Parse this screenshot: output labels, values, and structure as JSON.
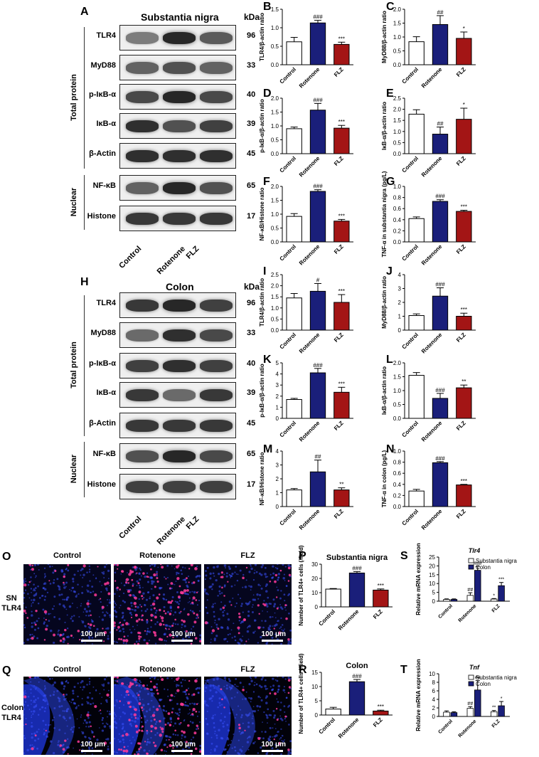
{
  "panel_letters": {
    "A": "A",
    "B": "B",
    "C": "C",
    "D": "D",
    "E": "E",
    "F": "F",
    "G": "G",
    "H": "H",
    "I": "I",
    "J": "J",
    "K": "K",
    "L": "L",
    "M": "M",
    "N": "N",
    "O": "O",
    "P": "P",
    "Q": "Q",
    "R": "R",
    "S": "S",
    "T": "T"
  },
  "blot_A": {
    "title": "Substantia nigra",
    "kda_header": "kDa",
    "group_total": "Total protein",
    "group_nuclear": "Nuclear",
    "rows": [
      {
        "label": "TLR4",
        "kda": "96",
        "intensity": [
          0.45,
          0.95,
          0.65
        ]
      },
      {
        "label": "MyD88",
        "kda": "33",
        "intensity": [
          0.6,
          0.7,
          0.6
        ]
      },
      {
        "label": "p-IκB-α",
        "kda": "40",
        "intensity": [
          0.75,
          0.95,
          0.75
        ]
      },
      {
        "label": "IκB-α",
        "kda": "39",
        "intensity": [
          0.9,
          0.7,
          0.8
        ]
      },
      {
        "label": "β-Actin",
        "kda": "45",
        "intensity": [
          0.9,
          0.9,
          0.9
        ]
      },
      {
        "label": "NF-κB",
        "kda": "65",
        "intensity": [
          0.6,
          0.95,
          0.7
        ]
      },
      {
        "label": "Histone",
        "kda": "17",
        "intensity": [
          0.85,
          0.85,
          0.85
        ]
      }
    ],
    "lanes": [
      "Control",
      "Rotenone",
      "FLZ"
    ]
  },
  "blot_H": {
    "title": "Colon",
    "kda_header": "kDa",
    "group_total": "Total protein",
    "group_nuclear": "Nuclear",
    "rows": [
      {
        "label": "TLR4",
        "kda": "96",
        "intensity": [
          0.85,
          0.95,
          0.8
        ]
      },
      {
        "label": "MyD88",
        "kda": "33",
        "intensity": [
          0.55,
          0.9,
          0.75
        ]
      },
      {
        "label": "p-IκB-α",
        "kda": "40",
        "intensity": [
          0.8,
          0.9,
          0.8
        ]
      },
      {
        "label": "IκB-α",
        "kda": "39",
        "intensity": [
          0.85,
          0.55,
          0.85
        ]
      },
      {
        "label": "β-Actin",
        "kda": "45",
        "intensity": [
          0.85,
          0.85,
          0.85
        ]
      },
      {
        "label": "NF-κB",
        "kda": "65",
        "intensity": [
          0.7,
          0.95,
          0.75
        ]
      },
      {
        "label": "Histone",
        "kda": "17",
        "intensity": [
          0.8,
          0.8,
          0.8
        ]
      }
    ],
    "lanes": [
      "Control",
      "Rotenone",
      "FLZ"
    ]
  },
  "microscopy": {
    "O": {
      "col_labels": [
        "Control",
        "Rotenone",
        "FLZ"
      ],
      "row_label_1": "SN",
      "row_label_2": "TLR4",
      "scale": "100 μm",
      "dots": [
        45,
        140,
        40
      ]
    },
    "Q": {
      "col_labels": [
        "Control",
        "Rotenone",
        "FLZ"
      ],
      "row_label_1": "Colon",
      "row_label_2": "TLR4",
      "scale": "100 μm",
      "dots": [
        20,
        110,
        20
      ]
    }
  },
  "colors": {
    "control": "#ffffff",
    "rotenone": "#1a1f7a",
    "flz": "#a31515",
    "sn": "#ffffff",
    "colon": "#1a1f7a"
  },
  "chart_data": [
    {
      "id": "B",
      "type": "bar",
      "ylabel": "TLR4/β-actin ratio",
      "categories": [
        "Control",
        "Rotenone",
        "FLZ"
      ],
      "values": [
        0.62,
        1.13,
        0.55
      ],
      "errors": [
        0.12,
        0.07,
        0.06
      ],
      "ylim": [
        0,
        1.5
      ],
      "ticks": [
        "0.0",
        "0.5",
        "1.0",
        "1.5"
      ],
      "annotations": [
        "",
        "###",
        "***"
      ]
    },
    {
      "id": "C",
      "type": "bar",
      "ylabel": "MyD88/β-actin ratio",
      "categories": [
        "Control",
        "Rotenone",
        "FLZ"
      ],
      "values": [
        0.83,
        1.45,
        0.95
      ],
      "errors": [
        0.18,
        0.32,
        0.23
      ],
      "ylim": [
        0,
        2.0
      ],
      "ticks": [
        "0.0",
        "0.5",
        "1.0",
        "1.5",
        "2.0"
      ],
      "annotations": [
        "",
        "##",
        "*"
      ]
    },
    {
      "id": "D",
      "type": "bar",
      "ylabel": "p-IκB-α/β-actin ratio",
      "categories": [
        "Control",
        "Rotenone",
        "FLZ"
      ],
      "values": [
        0.9,
        1.57,
        0.92
      ],
      "errors": [
        0.06,
        0.24,
        0.1
      ],
      "ylim": [
        0,
        2.0
      ],
      "ticks": [
        "0.0",
        "0.5",
        "1.0",
        "1.5",
        "2.0"
      ],
      "annotations": [
        "",
        "###",
        "***"
      ]
    },
    {
      "id": "E",
      "type": "bar",
      "ylabel": "IκB-α/β-actin ratio",
      "categories": [
        "Control",
        "Rotenone",
        "FLZ"
      ],
      "values": [
        1.78,
        0.88,
        1.55
      ],
      "errors": [
        0.2,
        0.32,
        0.5
      ],
      "ylim": [
        0,
        2.5
      ],
      "ticks": [
        "0.0",
        "0.5",
        "1.0",
        "1.5",
        "2.0",
        "2.5"
      ],
      "annotations": [
        "",
        "##",
        "*"
      ]
    },
    {
      "id": "F",
      "type": "bar",
      "ylabel": "NF-κB/Histone ratio",
      "categories": [
        "Control",
        "Rotenone",
        "FLZ"
      ],
      "values": [
        0.92,
        1.82,
        0.75
      ],
      "errors": [
        0.1,
        0.06,
        0.06
      ],
      "ylim": [
        0,
        2.0
      ],
      "ticks": [
        "0.0",
        "0.5",
        "1.0",
        "1.5",
        "2.0"
      ],
      "annotations": [
        "",
        "###",
        "***"
      ]
    },
    {
      "id": "G",
      "type": "bar",
      "ylabel": "TNF-α in substantia nigra (pg/L)",
      "categories": [
        "Control",
        "Rotenone",
        "FLZ"
      ],
      "values": [
        0.42,
        0.73,
        0.55
      ],
      "errors": [
        0.03,
        0.03,
        0.02
      ],
      "ylim": [
        0,
        1.0
      ],
      "ticks": [
        "0.0",
        "0.2",
        "0.4",
        "0.6",
        "0.8",
        "1.0"
      ],
      "annotations": [
        "",
        "###",
        "***"
      ]
    },
    {
      "id": "I",
      "type": "bar",
      "ylabel": "TLR4/β-actin ratio",
      "categories": [
        "Control",
        "Rotenone",
        "FLZ"
      ],
      "values": [
        1.45,
        1.75,
        1.25
      ],
      "errors": [
        0.2,
        0.35,
        0.35
      ],
      "ylim": [
        0,
        2.5
      ],
      "ticks": [
        "0.0",
        "0.5",
        "1.0",
        "1.5",
        "2.0",
        "2.5"
      ],
      "annotations": [
        "",
        "#",
        "***"
      ]
    },
    {
      "id": "J",
      "type": "bar",
      "ylabel": "MyD88/β-actin ratio",
      "categories": [
        "Control",
        "Rotenone",
        "FLZ"
      ],
      "values": [
        1.05,
        2.45,
        1.0
      ],
      "errors": [
        0.12,
        0.6,
        0.22
      ],
      "ylim": [
        0,
        4
      ],
      "ticks": [
        "0",
        "1",
        "2",
        "3",
        "4"
      ],
      "annotations": [
        "",
        "###",
        "***"
      ]
    },
    {
      "id": "K",
      "type": "bar",
      "ylabel": "p-IκB-α/β-actin ratio",
      "categories": [
        "Control",
        "Rotenone",
        "FLZ"
      ],
      "values": [
        1.7,
        4.1,
        2.35
      ],
      "errors": [
        0.1,
        0.4,
        0.45
      ],
      "ylim": [
        0,
        5
      ],
      "ticks": [
        "0",
        "1",
        "2",
        "3",
        "4",
        "5"
      ],
      "annotations": [
        "",
        "###",
        "***"
      ]
    },
    {
      "id": "L",
      "type": "bar",
      "ylabel": "IκB-α/β-actin ratio",
      "categories": [
        "Control",
        "Rotenone",
        "FLZ"
      ],
      "values": [
        1.55,
        0.72,
        1.1
      ],
      "errors": [
        0.1,
        0.18,
        0.1
      ],
      "ylim": [
        0,
        2.0
      ],
      "ticks": [
        "0.0",
        "0.5",
        "1.0",
        "1.5",
        "2.0"
      ],
      "annotations": [
        "",
        "###",
        "**"
      ]
    },
    {
      "id": "M",
      "type": "bar",
      "ylabel": "NF-κB/Histone ratio",
      "categories": [
        "Control",
        "Rotenone",
        "FLZ"
      ],
      "values": [
        1.2,
        2.5,
        1.2
      ],
      "errors": [
        0.1,
        0.85,
        0.15
      ],
      "ylim": [
        0,
        4
      ],
      "ticks": [
        "0",
        "1",
        "2",
        "3",
        "4"
      ],
      "annotations": [
        "",
        "##",
        "**"
      ]
    },
    {
      "id": "N",
      "type": "bar",
      "ylabel": "TNF-α in colon (pg/L)",
      "categories": [
        "Control",
        "Rotenone",
        "FLZ"
      ],
      "values": [
        0.28,
        0.79,
        0.39
      ],
      "errors": [
        0.03,
        0.02,
        0.01
      ],
      "ylim": [
        0,
        1.0
      ],
      "ticks": [
        "0.0",
        "0.2",
        "0.4",
        "0.6",
        "0.8",
        "1.0"
      ],
      "annotations": [
        "",
        "###",
        "***"
      ]
    },
    {
      "id": "P",
      "type": "bar",
      "title": "Substantia nigra",
      "ylabel": "Number of TLR4+ cells (/field)",
      "categories": [
        "Control",
        "Rotenone",
        "FLZ"
      ],
      "values": [
        12.5,
        23.8,
        11.8
      ],
      "errors": [
        0.4,
        1.0,
        0.8
      ],
      "ylim": [
        0,
        30
      ],
      "ticks": [
        "0",
        "10",
        "20",
        "30"
      ],
      "annotations": [
        "",
        "###",
        "***"
      ]
    },
    {
      "id": "R",
      "type": "bar",
      "title": "Colon",
      "ylabel": "Number of TLR4+ cells (/field)",
      "categories": [
        "Control",
        "Rotenone",
        "FLZ"
      ],
      "values": [
        2.1,
        11.7,
        1.4
      ],
      "errors": [
        0.6,
        0.8,
        0.3
      ],
      "ylim": [
        0,
        15
      ],
      "ticks": [
        "0",
        "5",
        "10",
        "15"
      ],
      "annotations": [
        "",
        "###",
        "***"
      ]
    },
    {
      "id": "S",
      "type": "grouped-bar",
      "title": "Tlr4",
      "ylabel": "Relative mRNA expression",
      "categories": [
        "Control",
        "Rotenone",
        "FLZ"
      ],
      "series": [
        {
          "name": "Substantia nigra",
          "values": [
            1.0,
            3.3,
            1.2
          ],
          "errors": [
            0.3,
            1.5,
            0.3
          ]
        },
        {
          "name": "Colon",
          "values": [
            1.0,
            17.5,
            8.8
          ],
          "errors": [
            0.3,
            2.2,
            1.8
          ]
        }
      ],
      "ylim": [
        0,
        25
      ],
      "ticks": [
        "0",
        "5",
        "10",
        "15",
        "20",
        "25"
      ],
      "annotations": [
        [
          "",
          ""
        ],
        [
          "##",
          "###"
        ],
        [
          "*",
          "***"
        ]
      ]
    },
    {
      "id": "T",
      "type": "grouped-bar",
      "title": "Tnf",
      "ylabel": "Relative mRNA expression",
      "categories": [
        "Control",
        "Rotenone",
        "FLZ"
      ],
      "series": [
        {
          "name": "Substantia nigra",
          "values": [
            1.0,
            1.9,
            1.1
          ],
          "errors": [
            0.3,
            0.4,
            0.3
          ]
        },
        {
          "name": "Colon",
          "values": [
            0.9,
            6.2,
            2.5
          ],
          "errors": [
            0.2,
            2.2,
            1.0
          ]
        }
      ],
      "ylim": [
        0,
        10
      ],
      "ticks": [
        "0",
        "2",
        "4",
        "6",
        "8",
        "10"
      ],
      "annotations": [
        [
          "",
          ""
        ],
        [
          "##",
          "##"
        ],
        [
          "**",
          "*"
        ]
      ]
    }
  ]
}
